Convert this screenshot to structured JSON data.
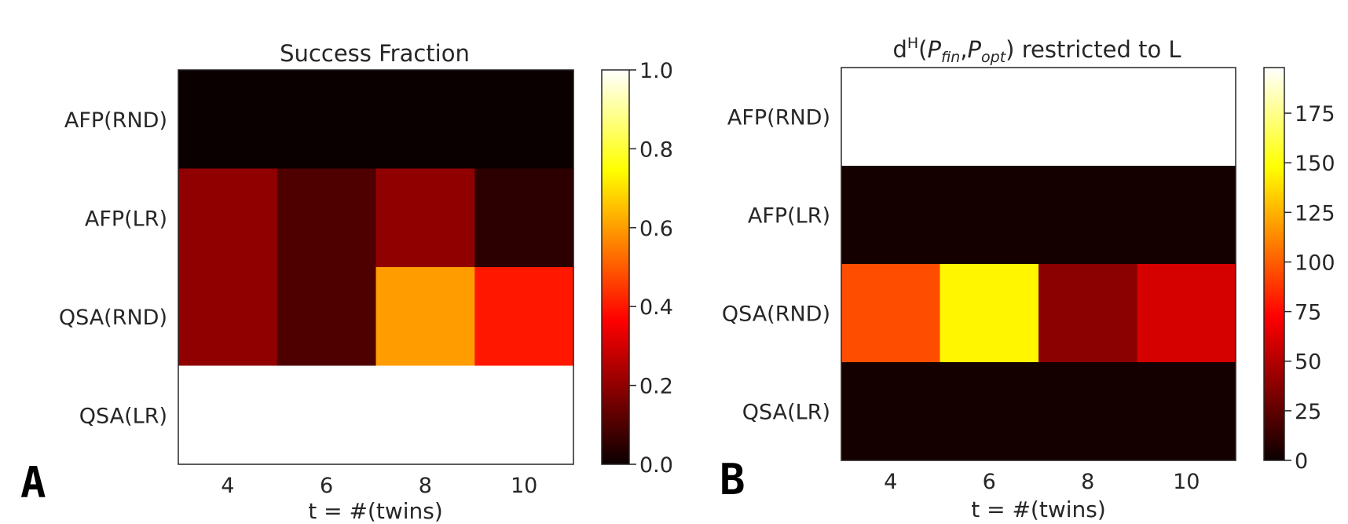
{
  "chart_data": [
    {
      "type": "heatmap",
      "panel_label": "A",
      "title": "Success Fraction",
      "xlabel": "t = #(twins)",
      "ylabel": "",
      "x_categories": [
        "4",
        "6",
        "8",
        "10"
      ],
      "y_categories": [
        "AFP(RND)",
        "AFP(LR)",
        "QSA(RND)",
        "QSA(LR)"
      ],
      "values": [
        [
          0.0,
          0.0,
          0.0,
          0.0
        ],
        [
          0.2,
          0.1,
          0.2,
          0.05
        ],
        [
          0.2,
          0.1,
          0.6,
          0.4
        ],
        [
          1.0,
          1.0,
          1.0,
          1.0
        ]
      ],
      "colormap": "hot",
      "vmin": 0.0,
      "vmax": 1.0,
      "colorbar_ticks": [
        0.0,
        0.2,
        0.4,
        0.6,
        0.8,
        1.0
      ],
      "colorbar_tick_labels": [
        "0.0",
        "0.2",
        "0.4",
        "0.6",
        "0.8",
        "1.0"
      ]
    },
    {
      "type": "heatmap",
      "panel_label": "B",
      "title": {
        "pre": "d",
        "sup": "H",
        "open": "(",
        "p1": "P",
        "p1_sub": "fin",
        "comma": ",",
        "p2": "P",
        "p2_sub": "opt",
        "rest": ") restricted to L"
      },
      "xlabel": "t = #(twins)",
      "ylabel": "",
      "x_categories": [
        "4",
        "6",
        "8",
        "10"
      ],
      "y_categories": [
        "AFP(RND)",
        "AFP(LR)",
        "QSA(RND)",
        "QSA(LR)"
      ],
      "values": [
        [
          198,
          198,
          198,
          198
        ],
        [
          3,
          3,
          3,
          3
        ],
        [
          95,
          145,
          38,
          60
        ],
        [
          3,
          3,
          3,
          3
        ]
      ],
      "colormap": "hot",
      "vmin": 0,
      "vmax": 198,
      "colorbar_ticks": [
        0,
        25,
        50,
        75,
        100,
        125,
        150,
        175
      ],
      "colorbar_tick_labels": [
        "0",
        "25",
        "50",
        "75",
        "100",
        "125",
        "150",
        "175"
      ]
    }
  ]
}
